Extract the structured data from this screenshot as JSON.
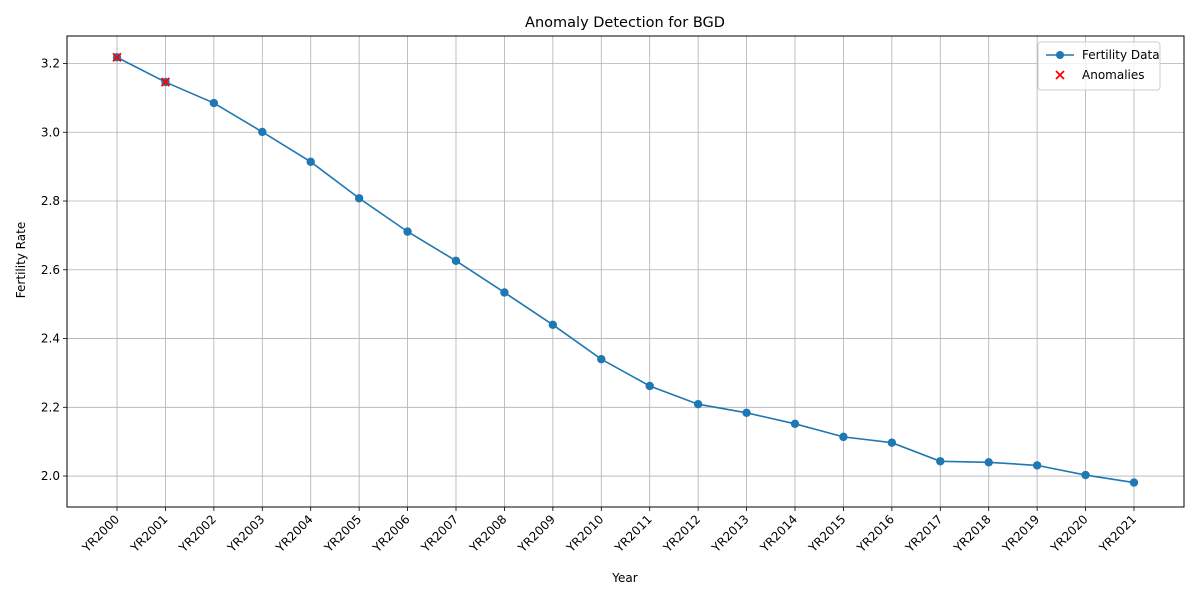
{
  "chart_data": {
    "type": "line",
    "title": "Anomaly Detection for BGD",
    "xlabel": "Year",
    "ylabel": "Fertility Rate",
    "categories": [
      "YR2000",
      "YR2001",
      "YR2002",
      "YR2003",
      "YR2004",
      "YR2005",
      "YR2006",
      "YR2007",
      "YR2008",
      "YR2009",
      "YR2010",
      "YR2011",
      "YR2012",
      "YR2013",
      "YR2014",
      "YR2015",
      "YR2016",
      "YR2017",
      "YR2018",
      "YR2019",
      "YR2020",
      "YR2021"
    ],
    "series": [
      {
        "name": "Fertility Data",
        "color": "#1f77b4",
        "values": [
          3.218,
          3.146,
          3.085,
          3.001,
          2.914,
          2.808,
          2.711,
          2.626,
          2.534,
          2.44,
          2.34,
          2.262,
          2.209,
          2.184,
          2.152,
          2.114,
          2.097,
          2.043,
          2.04,
          2.031,
          2.003,
          1.981
        ]
      }
    ],
    "anomalies": {
      "name": "Anomalies",
      "color": "#ff0000",
      "categories": [
        "YR2000",
        "YR2001"
      ],
      "values": [
        3.218,
        3.146
      ]
    },
    "ylim": [
      1.91,
      3.28
    ],
    "yticks": [
      2.0,
      2.2,
      2.4,
      2.6,
      2.8,
      3.0,
      3.2
    ],
    "ytick_labels": [
      "2.0",
      "2.2",
      "2.4",
      "2.6",
      "2.8",
      "3.0",
      "3.2"
    ],
    "grid": true,
    "legend_position": "top-right"
  }
}
